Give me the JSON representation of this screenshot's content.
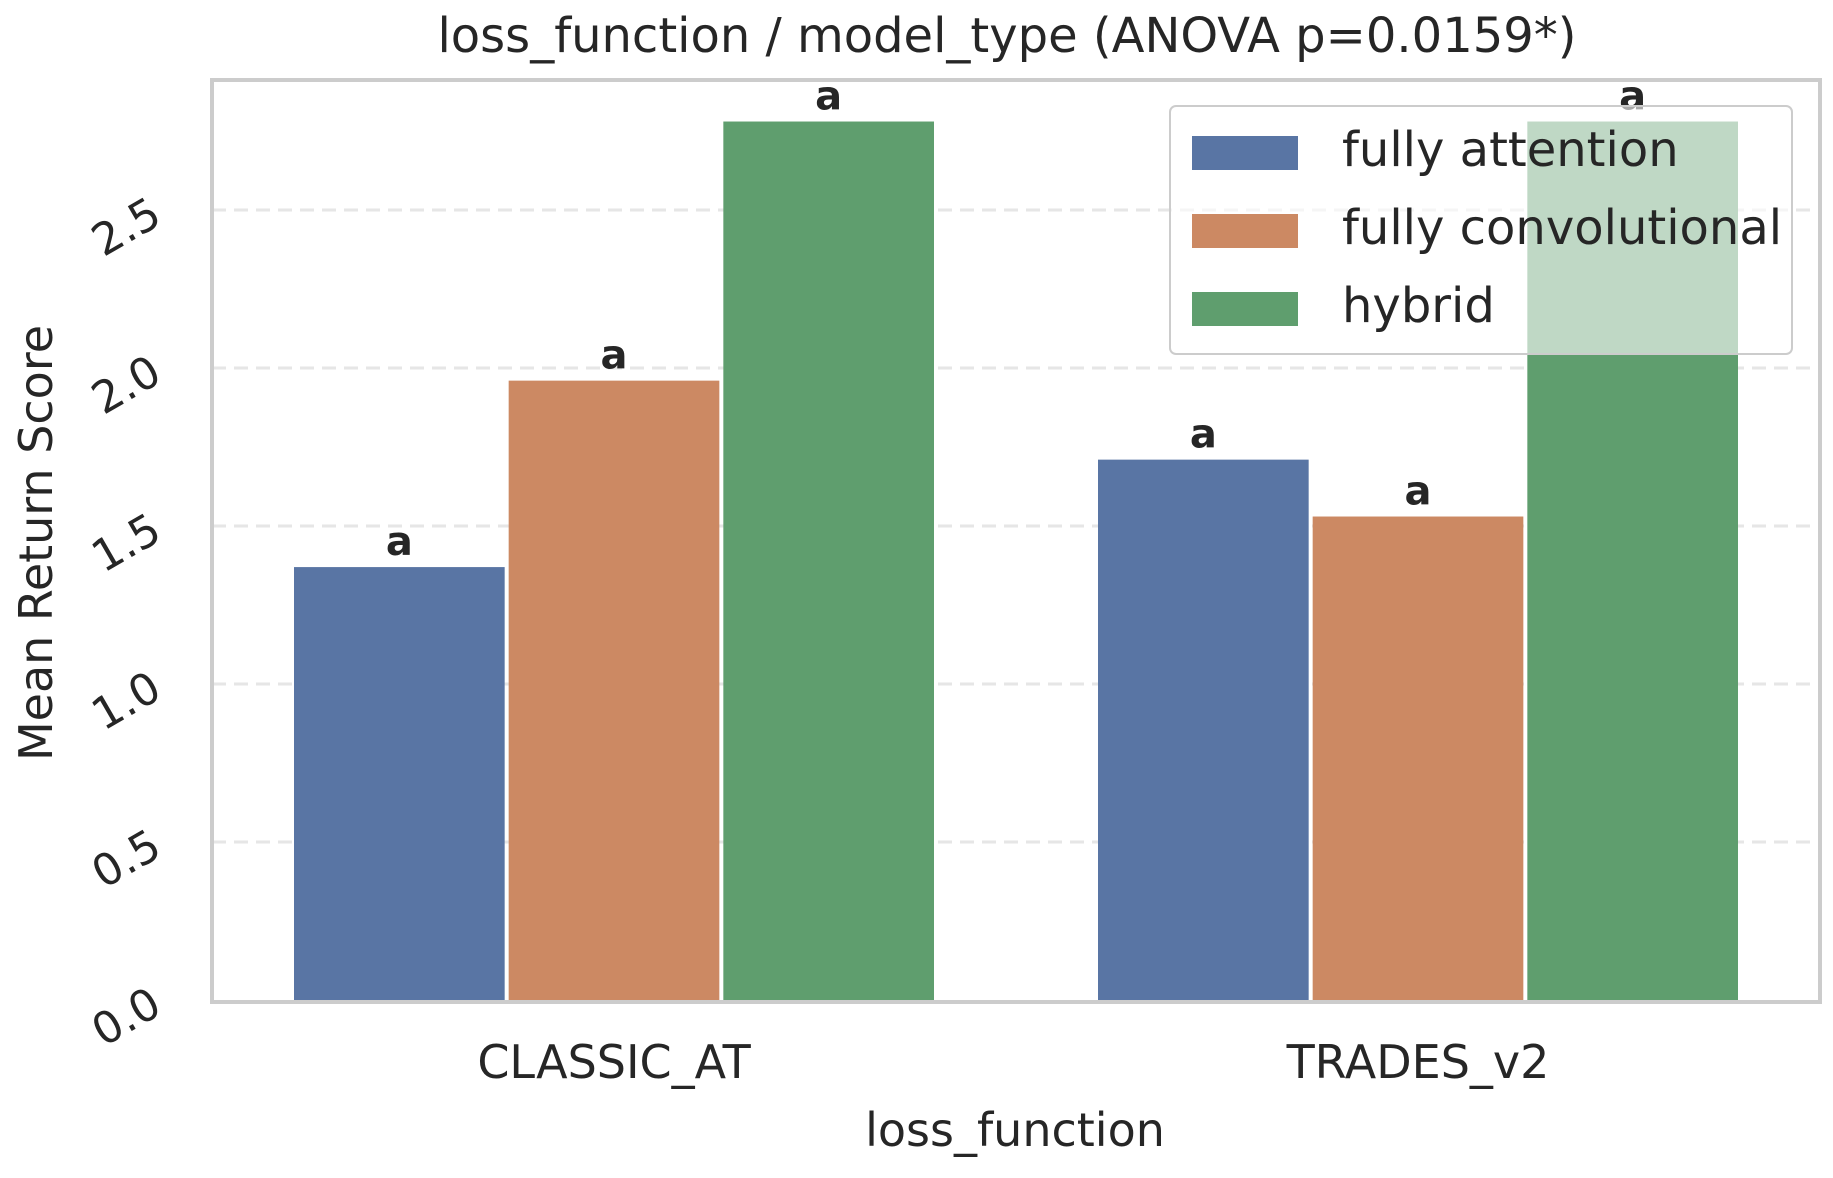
{
  "chart_data": {
    "type": "bar",
    "title": "loss_function / model_type  (ANOVA p=0.0159*)",
    "xlabel": "loss_function",
    "ylabel": "Mean Return Score",
    "categories": [
      "CLASSIC_AT",
      "TRADES_v2"
    ],
    "ylim": [
      0,
      2.9
    ],
    "yticks": [
      0.0,
      0.5,
      1.0,
      1.5,
      2.0,
      2.5
    ],
    "ytick_labels": [
      "0.0",
      "0.5",
      "1.0",
      "1.5",
      "2.0",
      "2.5"
    ],
    "grid": true,
    "legend_position": "top-right",
    "series": [
      {
        "name": "fully attention",
        "color": "#5975a4",
        "values": [
          1.37,
          1.71
        ],
        "labels": [
          "a",
          "a"
        ]
      },
      {
        "name": "fully convolutional",
        "color": "#cc8963",
        "values": [
          1.96,
          1.53
        ],
        "labels": [
          "a",
          "a"
        ]
      },
      {
        "name": "hybrid",
        "color": "#5f9e6e",
        "values": [
          2.78,
          2.78
        ],
        "labels": [
          "a",
          "a"
        ]
      }
    ]
  }
}
